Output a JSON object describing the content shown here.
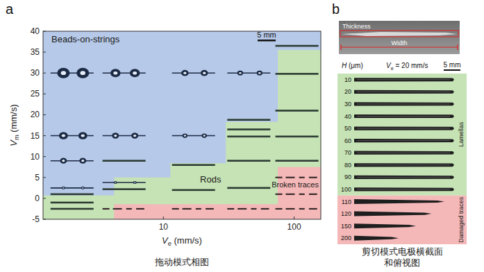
{
  "chart_data": {
    "type": "phase_diagram",
    "label": "a",
    "xlabel": "Ve (mm/s)",
    "ylabel": "Vm (mm/s)",
    "log": "x",
    "xlim": [
      1.2,
      160
    ],
    "xticks": [
      10,
      100
    ],
    "ylim": [
      -5,
      40
    ],
    "yticks": [
      -5,
      0,
      5,
      10,
      15,
      20,
      25,
      30,
      35,
      40
    ],
    "series": [
      {
        "name": "Beads-on-strings",
        "type": "step_area",
        "color": "#b6c9e8",
        "x_edges": [
          1.2,
          160
        ],
        "values": [
          40
        ]
      },
      {
        "name": "Rods",
        "type": "step_area",
        "color": "#c6e3b5",
        "x_edges": [
          1.2,
          4.2,
          11.3,
          30,
          75,
          160
        ],
        "values": [
          0.7,
          5,
          8.4,
          18.3,
          35.5
        ]
      },
      {
        "name": "Broken traces",
        "type": "step_area",
        "color": "#f4b8b8",
        "x_edges": [
          4.2,
          75,
          160
        ],
        "values": [
          -1.4,
          7.5
        ]
      }
    ],
    "traces": [
      {
        "marker": "beads",
        "x": [
          2,
          2,
          2,
          2,
          5,
          5,
          5,
          17,
          17,
          45
        ],
        "y": [
          30,
          15,
          9,
          2.5,
          30,
          15,
          3.8,
          30,
          15,
          30
        ]
      },
      {
        "marker": "rod",
        "x": [
          2,
          2,
          2,
          5,
          5,
          17,
          17,
          45,
          45,
          45,
          45,
          45,
          105,
          105,
          105,
          105,
          105
        ],
        "y": [
          1,
          -1,
          -2.5,
          9,
          2.2,
          8,
          2,
          18.8,
          16.5,
          14.8,
          9,
          2.5,
          36.5,
          29.8,
          21,
          14.8,
          9
        ]
      },
      {
        "marker": "broken",
        "x": [
          5,
          17,
          45,
          105,
          105,
          105
        ],
        "y": [
          -2.5,
          -2.5,
          -2.5,
          5,
          1,
          -2.5
        ]
      }
    ],
    "scale_bar": "5 mm",
    "caption": "拖动模式相图"
  },
  "panel_b": {
    "label": "b",
    "photo_labels": [
      "Thickness",
      "Width"
    ],
    "header": {
      "h": "H (μm)",
      "speed": "Ve = 20 mm/s",
      "scale_bar": "5 mm"
    },
    "groups": [
      {
        "name": "Lamellas",
        "color": "#c6e3b5",
        "rows": [
          10,
          20,
          30,
          40,
          50,
          60,
          70,
          80,
          90,
          100
        ]
      },
      {
        "name": "Damaged traces",
        "color": "#f4b8b8",
        "rows": [
          110,
          120,
          150,
          200
        ]
      }
    ],
    "caption": [
      "剪切模式电极横截面",
      "和俯视图"
    ]
  }
}
